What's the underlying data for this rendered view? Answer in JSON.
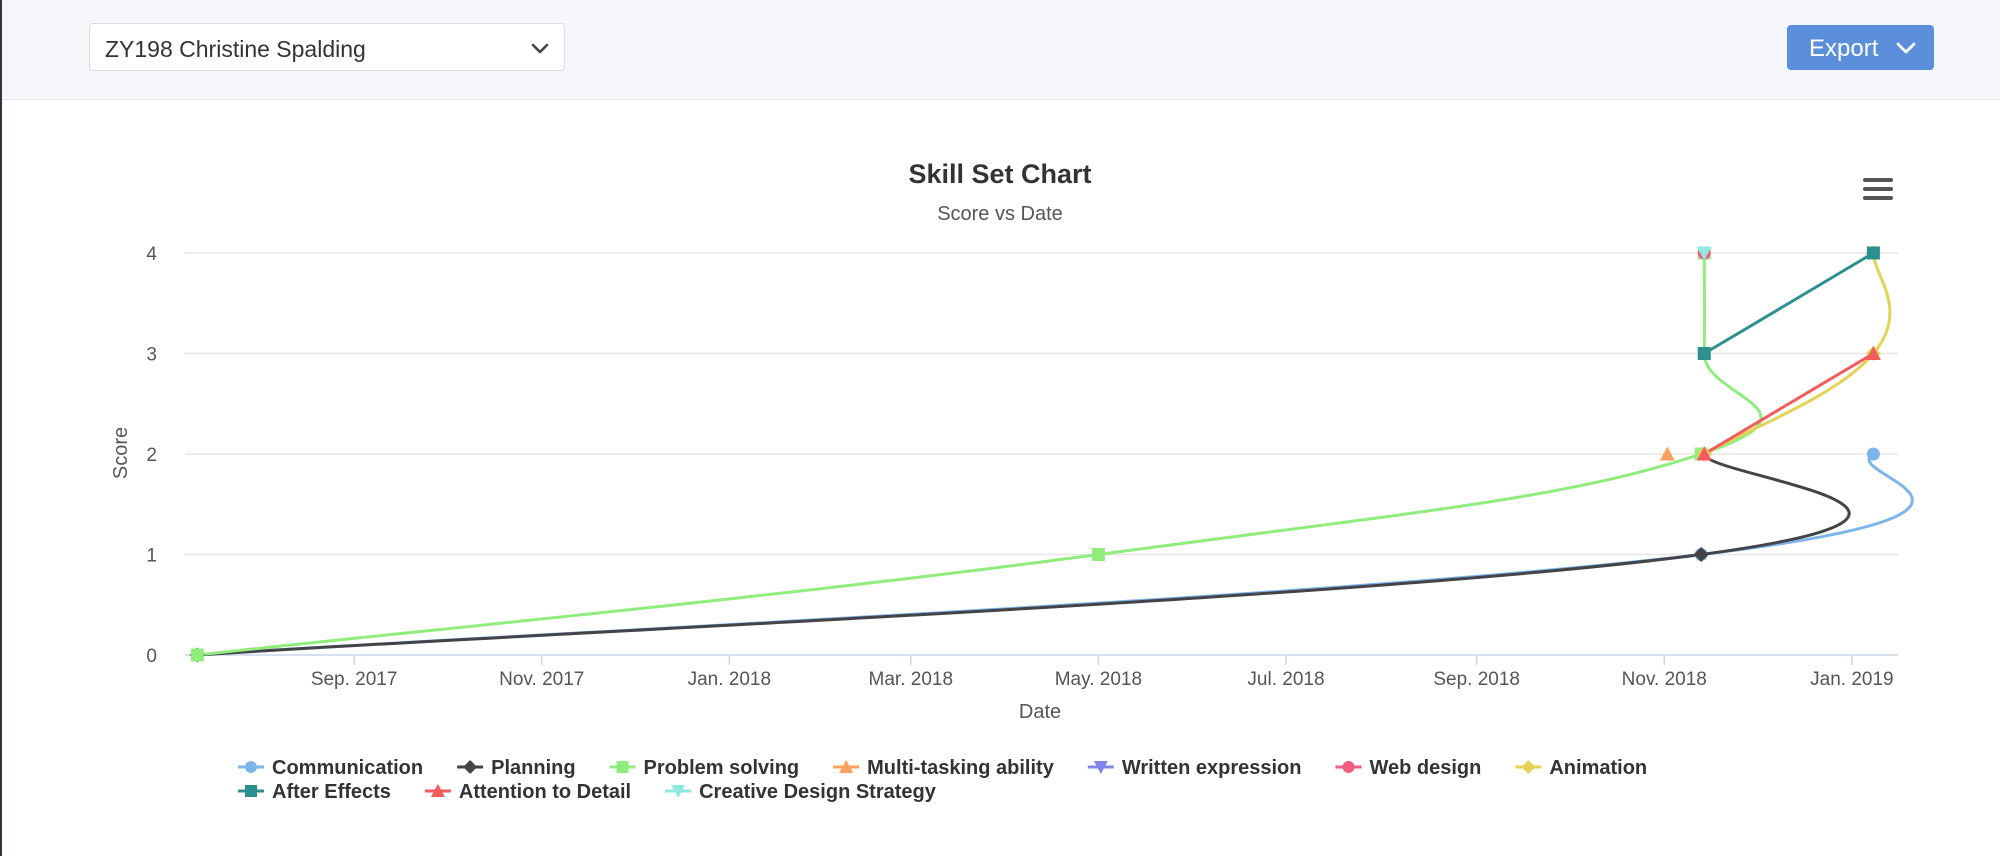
{
  "header": {
    "student_select": {
      "value": "ZY198 Christine Spalding",
      "icon": "chevron-down-icon"
    },
    "export_button": {
      "label": "Export",
      "icon": "chevron-down-icon"
    }
  },
  "chart_menu_icon": "hamburger-menu-icon",
  "chart_data": {
    "type": "line",
    "title": "Skill Set Chart",
    "subtitle": "Score vs Date",
    "xlabel": "Date",
    "ylabel": "Score",
    "xlim": [
      "2017-07-08",
      "2019-01-16"
    ],
    "ylim": [
      0,
      4
    ],
    "x_ticks": [
      {
        "label": "Sep. 2017",
        "date": "2017-09-01"
      },
      {
        "label": "Nov. 2017",
        "date": "2017-11-01"
      },
      {
        "label": "Jan. 2018",
        "date": "2018-01-01"
      },
      {
        "label": "Mar. 2018",
        "date": "2018-03-01"
      },
      {
        "label": "May. 2018",
        "date": "2018-05-01"
      },
      {
        "label": "Jul. 2018",
        "date": "2018-07-01"
      },
      {
        "label": "Sep. 2018",
        "date": "2018-09-01"
      },
      {
        "label": "Nov. 2018",
        "date": "2018-11-01"
      },
      {
        "label": "Jan. 2019",
        "date": "2019-01-01"
      }
    ],
    "y_ticks": [
      0,
      1,
      2,
      3,
      4
    ],
    "grid": true,
    "legend_position": "bottom",
    "series": [
      {
        "name": "Communication",
        "color": "#7cb5ec",
        "marker": "circle",
        "points": [
          [
            "2017-07-12",
            0
          ],
          [
            "2018-11-13",
            1
          ],
          [
            "2019-01-08",
            2
          ]
        ]
      },
      {
        "name": "Planning",
        "color": "#434348",
        "marker": "diamond",
        "points": [
          [
            "2017-07-12",
            0
          ],
          [
            "2018-11-13",
            1
          ],
          [
            "2018-11-14",
            2
          ]
        ]
      },
      {
        "name": "Problem solving",
        "color": "#90ed7d",
        "marker": "square",
        "points": [
          [
            "2017-07-12",
            0
          ],
          [
            "2018-05-01",
            1
          ],
          [
            "2018-11-13",
            2
          ],
          [
            "2018-11-14",
            3
          ],
          [
            "2018-11-14",
            4
          ]
        ]
      },
      {
        "name": "Multi-tasking ability",
        "color": "#f7a35c",
        "marker": "triangle",
        "points": [
          [
            "2018-11-02",
            2
          ]
        ]
      },
      {
        "name": "Written expression",
        "color": "#8085e9",
        "marker": "triangle-down",
        "points": []
      },
      {
        "name": "Web design",
        "color": "#f15c80",
        "marker": "circle",
        "points": [
          [
            "2018-11-14",
            4
          ]
        ]
      },
      {
        "name": "Animation",
        "color": "#e4d354",
        "marker": "diamond",
        "points": [
          [
            "2018-11-14",
            2
          ],
          [
            "2019-01-08",
            3
          ],
          [
            "2019-01-08",
            4
          ]
        ]
      },
      {
        "name": "After Effects",
        "color": "#2b908f",
        "marker": "square",
        "points": [
          [
            "2018-11-14",
            3
          ],
          [
            "2019-01-08",
            4
          ]
        ]
      },
      {
        "name": "Attention to Detail",
        "color": "#f45b5b",
        "marker": "triangle",
        "points": [
          [
            "2018-11-14",
            2
          ],
          [
            "2019-01-08",
            3
          ]
        ]
      },
      {
        "name": "Creative Design Strategy",
        "color": "#91e8e1",
        "marker": "triangle-down",
        "points": [
          [
            "2018-11-14",
            4
          ]
        ]
      }
    ]
  }
}
